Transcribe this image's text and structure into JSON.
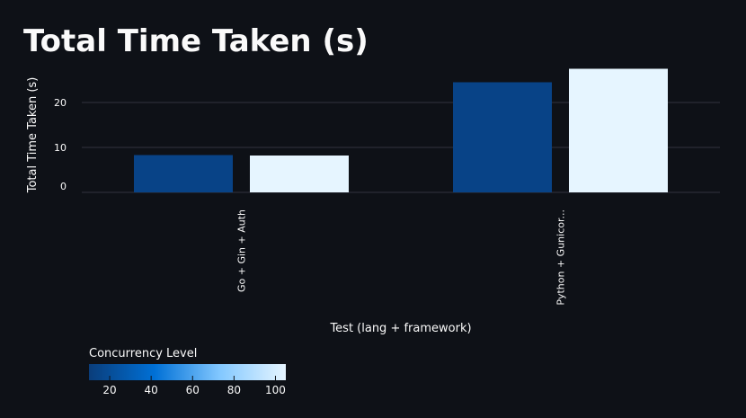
{
  "page": {
    "title": "Total Time Taken (s)"
  },
  "chart_data": {
    "type": "bar",
    "title": "",
    "xlabel": "Test (lang + framework)",
    "ylabel": "Total Time Taken (s)",
    "ylim": [
      0,
      28.8
    ],
    "yticks": [
      0,
      10,
      20
    ],
    "categories": [
      "Go + Gin + Auth",
      "Python + Gunicorn"
    ],
    "category_labels": [
      "Go + Gin + Auth",
      "Python + Gunicor..."
    ],
    "series": [
      {
        "concurrency": 10,
        "color": "#084387",
        "values": [
          8.3,
          24.5
        ]
      },
      {
        "concurrency": 100,
        "color": "#e6f5ff",
        "values": [
          8.2,
          27.5
        ]
      }
    ],
    "grid": true,
    "legend": {
      "title": "Concurrency Level",
      "type": "gradient",
      "placement": "bottom-left",
      "range": [
        10,
        105
      ],
      "ticks": [
        "20",
        "40",
        "60",
        "80",
        "100"
      ],
      "colors": [
        "#0a3d7a",
        "#0070d6",
        "#83c8ff",
        "#e6f5ff"
      ]
    },
    "colors": {
      "background": "#0e1117",
      "text": "#fafafa",
      "grid": "#31333f"
    }
  }
}
